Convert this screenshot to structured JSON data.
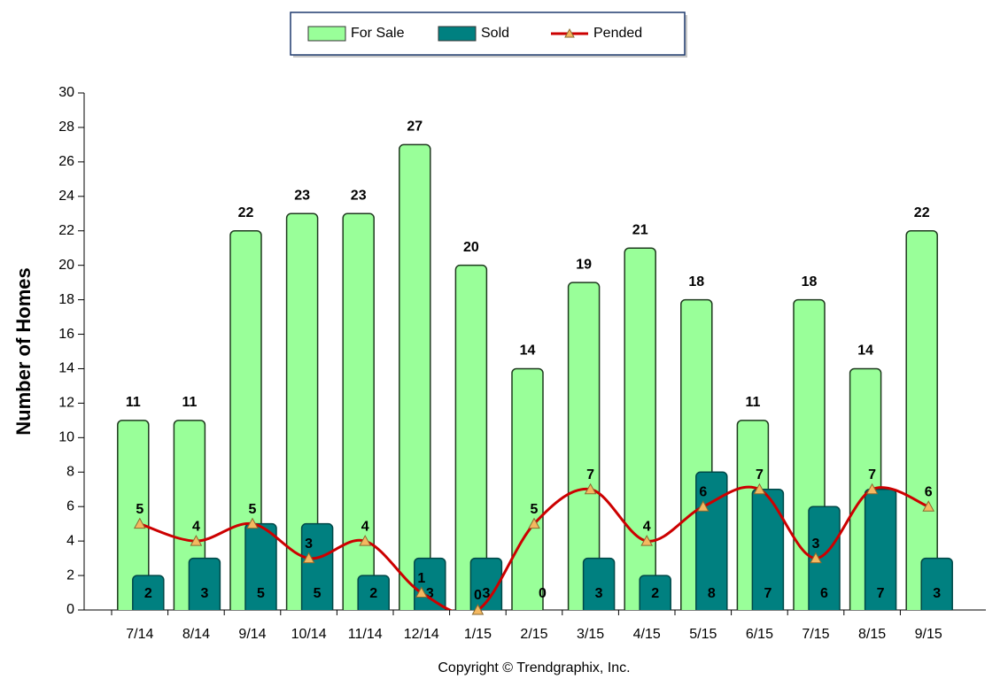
{
  "chart_data": {
    "type": "bar",
    "y_label": "Number of Homes",
    "copyright": "Copyright © Trendgraphix, Inc.",
    "categories": [
      "7/14",
      "8/14",
      "9/14",
      "10/14",
      "11/14",
      "12/14",
      "1/15",
      "2/15",
      "3/15",
      "4/15",
      "5/15",
      "6/15",
      "7/15",
      "8/15",
      "9/15"
    ],
    "series": [
      {
        "name": "For Sale",
        "type": "bar",
        "color": "#99ff99",
        "values": [
          11,
          11,
          22,
          23,
          23,
          27,
          20,
          14,
          19,
          21,
          18,
          11,
          18,
          14,
          22
        ]
      },
      {
        "name": "Sold",
        "type": "bar",
        "color": "#008080",
        "values": [
          2,
          3,
          5,
          5,
          2,
          3,
          3,
          0,
          3,
          2,
          8,
          7,
          6,
          7,
          3
        ]
      },
      {
        "name": "Pended",
        "type": "line",
        "color": "#cc0000",
        "marker_color": "#f4b860",
        "values": [
          5,
          4,
          5,
          3,
          4,
          1,
          0,
          5,
          7,
          4,
          6,
          7,
          3,
          7,
          6
        ]
      }
    ],
    "ylim": [
      0,
      30
    ],
    "yticks": [
      0,
      2,
      4,
      6,
      8,
      10,
      12,
      14,
      16,
      18,
      20,
      22,
      24,
      26,
      28,
      30
    ],
    "legend": "top"
  }
}
